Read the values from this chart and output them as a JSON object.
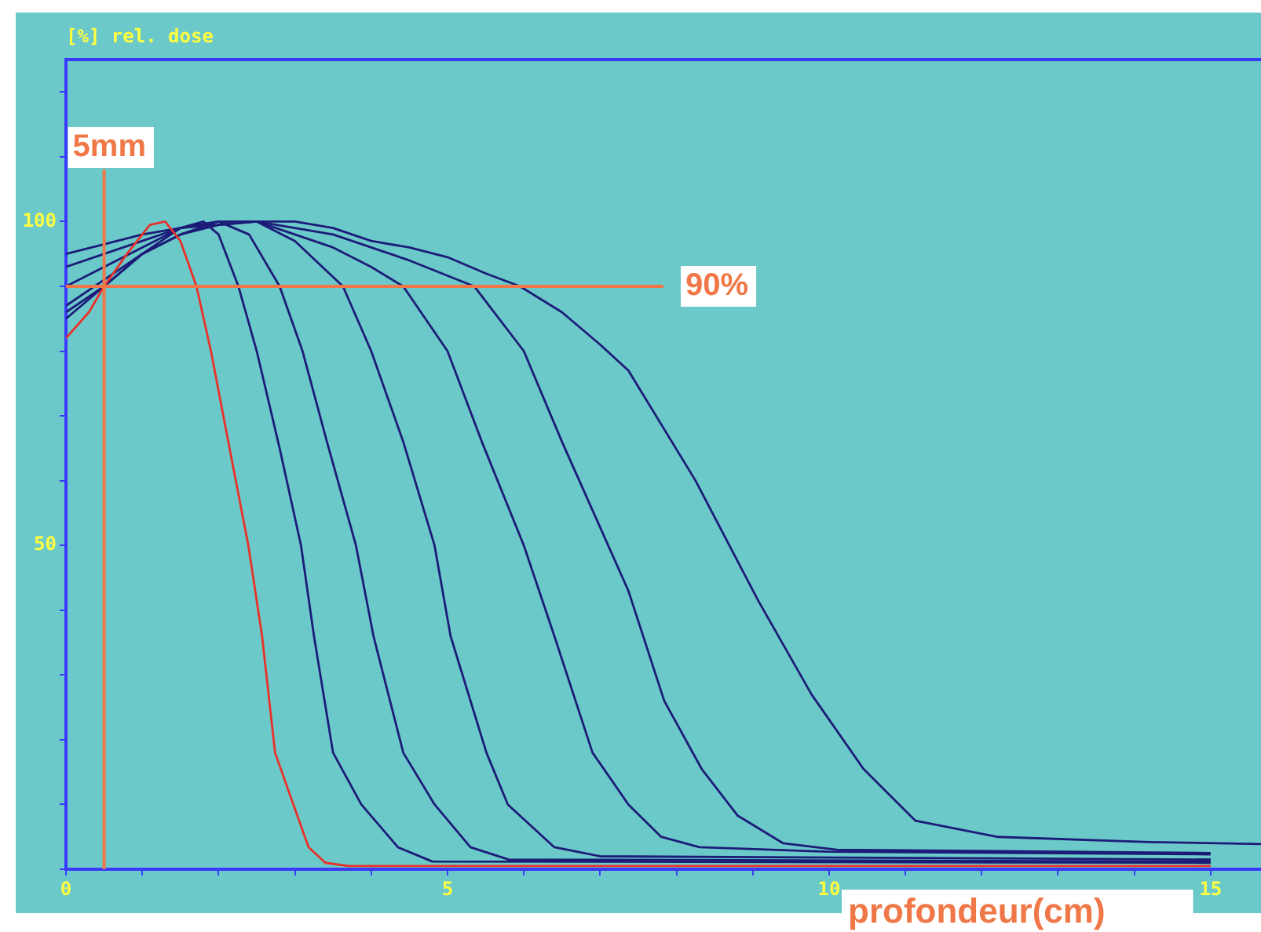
{
  "chart_data": {
    "type": "line",
    "ylabel": "[%] rel. dose",
    "xlabel": "profondeur(cm)",
    "xlim": [
      0,
      15.66
    ],
    "ylim": [
      0,
      125
    ],
    "xticks": [
      0,
      {
        "value": 1,
        "label": null
      },
      {
        "value": 2,
        "label": null
      },
      {
        "value": 3,
        "label": null
      },
      {
        "value": 4,
        "label": null
      },
      5,
      {
        "value": 6,
        "label": null
      },
      {
        "value": 7,
        "label": null
      },
      {
        "value": 8,
        "label": null
      },
      {
        "value": 9,
        "label": null
      },
      10,
      {
        "value": 11,
        "label": null
      },
      {
        "value": 12,
        "label": null
      },
      {
        "value": 13,
        "label": null
      },
      {
        "value": 14,
        "label": null
      },
      15
    ],
    "yticks": [
      {
        "value": 0,
        "label": null
      },
      {
        "value": 10,
        "label": null
      },
      {
        "value": 20,
        "label": null
      },
      {
        "value": 30,
        "label": null
      },
      {
        "value": 40,
        "label": null
      },
      50,
      {
        "value": 60,
        "label": null
      },
      {
        "value": 70,
        "label": null
      },
      {
        "value": 80,
        "label": null
      },
      {
        "value": 90,
        "label": null
      },
      100,
      {
        "value": 110,
        "label": null
      },
      {
        "value": 120,
        "label": null
      }
    ],
    "grid": false,
    "legend": false,
    "marker": "none",
    "line_style": "solid",
    "series": [
      {
        "color": "#e8322a",
        "x": [
          0,
          0.3,
          0.5,
          0.8,
          1.1,
          1.3,
          1.5,
          1.71,
          1.9,
          2.16,
          2.39,
          2.57,
          2.74,
          2.98,
          3.18,
          3.4,
          3.7,
          15
        ],
        "values": [
          82,
          86,
          90,
          95,
          99.5,
          100,
          97,
          90,
          80,
          64,
          50,
          36,
          18,
          10,
          3.4,
          1,
          0.5,
          0.5
        ]
      },
      {
        "color": "#1c1c78",
        "x": [
          0,
          0.5,
          1,
          1.5,
          1.8,
          2.0,
          2.26,
          2.5,
          2.8,
          3.08,
          3.25,
          3.5,
          3.87,
          4.35,
          4.8,
          15
        ],
        "values": [
          85,
          90,
          95,
          99,
          100,
          98,
          90,
          80,
          65,
          50,
          36,
          18,
          10,
          3.4,
          1.2,
          1
        ]
      },
      {
        "color": "#1c1c78",
        "x": [
          0,
          0.5,
          1,
          1.5,
          2,
          2.4,
          2.8,
          3.1,
          3.42,
          3.8,
          4.03,
          4.42,
          4.83,
          5.3,
          5.8,
          15
        ],
        "values": [
          86,
          90,
          95,
          98,
          100,
          98,
          90,
          80,
          66,
          50,
          36,
          18,
          10,
          3.4,
          1.5,
          1.2
        ]
      },
      {
        "color": "#1c1c78",
        "x": [
          0,
          0.5,
          1,
          1.5,
          2,
          2.5,
          3,
          3.63,
          4,
          4.42,
          4.83,
          5.04,
          5.51,
          5.79,
          6.4,
          7,
          15
        ],
        "values": [
          87,
          91,
          95,
          98,
          99.5,
          100,
          97,
          90,
          80,
          66,
          50,
          36,
          18,
          10,
          3.4,
          2,
          1.5
        ]
      },
      {
        "color": "#1c1c78",
        "x": [
          0,
          0.5,
          1,
          1.5,
          2,
          2.5,
          3,
          3.5,
          4,
          4.42,
          5,
          5.45,
          6,
          6.4,
          6.9,
          7.37,
          7.8,
          8.3,
          10,
          15
        ],
        "values": [
          90,
          93,
          96,
          99,
          100,
          100,
          98,
          96,
          93,
          90,
          80,
          66,
          50,
          36,
          18,
          10,
          5,
          3.4,
          2.7,
          2.3
        ]
      },
      {
        "color": "#1c1c78",
        "x": [
          0,
          0.5,
          1,
          1.5,
          2,
          2.5,
          3,
          3.5,
          4,
          4.5,
          5.35,
          6,
          6.5,
          7.37,
          7.84,
          8.33,
          8.8,
          9.4,
          10.1,
          15
        ],
        "values": [
          93,
          95,
          97,
          99,
          100,
          100,
          99,
          98,
          96,
          94,
          90,
          80,
          66,
          43,
          26,
          15.5,
          8.3,
          4,
          3,
          2.5
        ]
      },
      {
        "color": "#1c1c78",
        "x": [
          0,
          0.5,
          1,
          1.5,
          2,
          2.5,
          3,
          3.5,
          4,
          4.5,
          5,
          5.5,
          5.95,
          6.5,
          7,
          7.37,
          8.25,
          9.07,
          9.77,
          10.45,
          11.13,
          12.2,
          14.2,
          15.66
        ],
        "values": [
          95,
          96.5,
          98,
          99,
          99.5,
          100,
          100,
          99,
          97,
          96,
          94.5,
          92,
          90,
          86,
          81,
          77,
          60,
          41.5,
          27,
          15.5,
          7.5,
          5,
          4.2,
          3.9
        ]
      }
    ],
    "ref_lines": [
      {
        "axis": "y",
        "value": 90,
        "label": "90%",
        "color": "#f07848"
      },
      {
        "axis": "x",
        "value": 0.5,
        "label": "5mm",
        "color": "#f07848"
      }
    ]
  }
}
